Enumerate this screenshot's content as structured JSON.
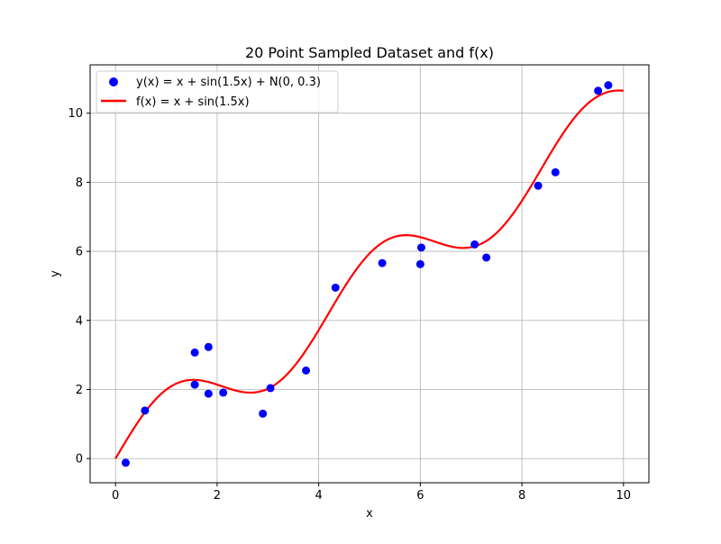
{
  "chart_data": {
    "type": "scatter",
    "title": "20 Point Sampled Dataset and f(x)",
    "xlabel": "x",
    "ylabel": "y",
    "xlim": [
      -0.5,
      10.5
    ],
    "ylim": [
      -0.7,
      11.4
    ],
    "xticks": [
      0,
      2,
      4,
      6,
      8,
      10
    ],
    "yticks": [
      0,
      2,
      4,
      6,
      8,
      10
    ],
    "grid": true,
    "legend_position": "top-left",
    "series": [
      {
        "name": "y(x) = x + sin(1.5x) + N(0, 0.3)",
        "kind": "scatter",
        "color": "#0000ff",
        "x": [
          0.2,
          0.58,
          1.56,
          1.56,
          1.83,
          1.83,
          2.12,
          2.9,
          3.05,
          3.75,
          4.33,
          5.25,
          6.0,
          6.02,
          7.07,
          7.3,
          8.32,
          8.66,
          9.5,
          9.7
        ],
        "y": [
          -0.12,
          1.39,
          3.07,
          2.14,
          3.23,
          1.88,
          1.91,
          1.3,
          2.04,
          2.55,
          4.95,
          5.66,
          5.63,
          6.11,
          6.2,
          5.82,
          7.9,
          8.29,
          10.65,
          10.81
        ]
      },
      {
        "name": "f(x) = x + sin(1.5x)",
        "kind": "line",
        "color": "#ff0000",
        "function": "x + sin(1.5x)",
        "domain": [
          0,
          10
        ]
      }
    ]
  }
}
